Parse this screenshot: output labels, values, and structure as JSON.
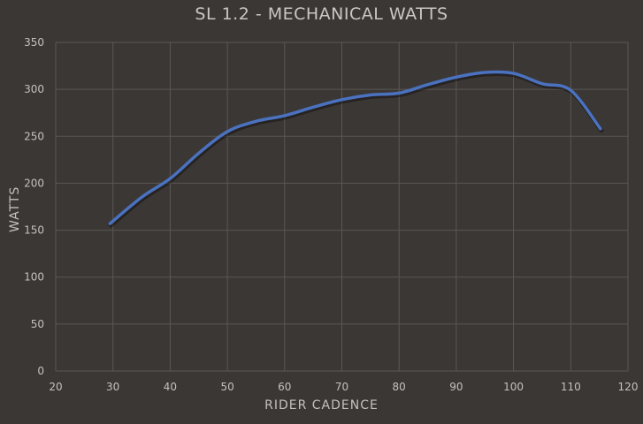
{
  "chart_data": {
    "type": "line",
    "title": "SL 1.2 - MECHANICAL WATTS",
    "xlabel": "RIDER CADENCE",
    "ylabel": "WATTS",
    "xlim": [
      20,
      120
    ],
    "ylim": [
      0,
      350
    ],
    "x_ticks": [
      20,
      30,
      40,
      50,
      60,
      70,
      80,
      90,
      100,
      110,
      120
    ],
    "y_ticks": [
      0,
      50,
      100,
      150,
      200,
      250,
      300,
      350
    ],
    "grid": true,
    "legend": null,
    "series": [
      {
        "name": "SL 1.2",
        "color": "#4a72c0",
        "x": [
          29.5,
          35,
          40,
          45,
          50,
          55,
          60,
          65,
          70,
          75,
          80,
          85,
          90,
          95,
          100,
          105,
          110,
          115.2
        ],
        "y": [
          157,
          185,
          205,
          232,
          255,
          266,
          272,
          281,
          289,
          294,
          296,
          305,
          313,
          318,
          317,
          306,
          299,
          258
        ]
      }
    ]
  },
  "colors": {
    "background": "#3b3735",
    "grid": "#5b5755",
    "text": "#c3c0be"
  }
}
